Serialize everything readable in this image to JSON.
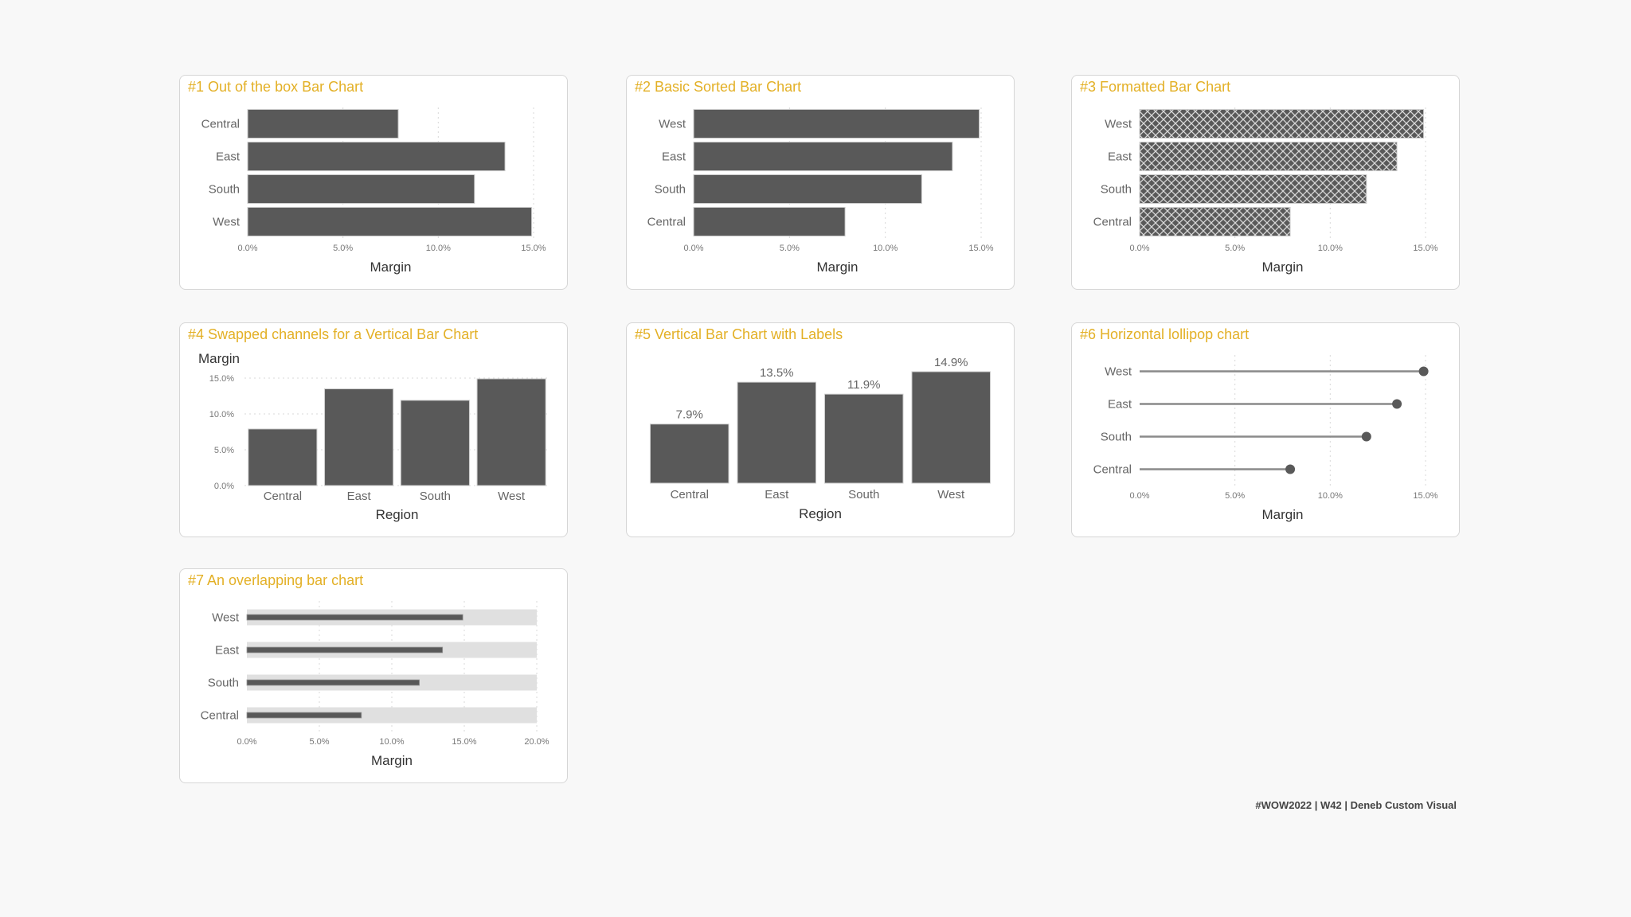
{
  "colors": {
    "title": "#e3b026",
    "bar": "#595959",
    "track": "#e0e0e0",
    "grid": "#d9d9d9",
    "background": "#f8f8f8"
  },
  "footer": "#WOW2022 | W42 | Deneb Custom Visual",
  "chart_data": [
    {
      "title": "#1 Out of the box Bar Chart",
      "type": "bar",
      "orientation": "horizontal",
      "categories": [
        "Central",
        "East",
        "South",
        "West"
      ],
      "values": [
        7.9,
        13.5,
        11.9,
        14.9
      ],
      "xlabel": "Margin",
      "ylabel": "",
      "xlim": [
        0,
        15
      ],
      "ticks": [
        0,
        5,
        10,
        15
      ],
      "tick_labels": [
        "0.0%",
        "5.0%",
        "10.0%",
        "15.0%"
      ],
      "grid": true
    },
    {
      "title": "#2 Basic Sorted Bar Chart",
      "type": "bar",
      "orientation": "horizontal",
      "categories": [
        "West",
        "East",
        "South",
        "Central"
      ],
      "values": [
        14.9,
        13.5,
        11.9,
        7.9
      ],
      "xlabel": "Margin",
      "ylabel": "",
      "xlim": [
        0,
        15
      ],
      "ticks": [
        0,
        5,
        10,
        15
      ],
      "tick_labels": [
        "0.0%",
        "5.0%",
        "10.0%",
        "15.0%"
      ],
      "grid": true
    },
    {
      "title": "#3 Formatted Bar Chart",
      "type": "bar",
      "orientation": "horizontal",
      "fill": "crosshatch pattern",
      "categories": [
        "West",
        "East",
        "South",
        "Central"
      ],
      "values": [
        14.9,
        13.5,
        11.9,
        7.9
      ],
      "xlabel": "Margin",
      "ylabel": "",
      "xlim": [
        0,
        15
      ],
      "ticks": [
        0,
        5,
        10,
        15
      ],
      "tick_labels": [
        "0.0%",
        "5.0%",
        "10.0%",
        "15.0%"
      ],
      "grid": true
    },
    {
      "title": "#4 Swapped channels for a Vertical Bar Chart",
      "type": "bar",
      "orientation": "vertical",
      "categories": [
        "Central",
        "East",
        "South",
        "West"
      ],
      "values": [
        7.9,
        13.5,
        11.9,
        14.9
      ],
      "xlabel": "Region",
      "ylabel": "Margin",
      "ylim": [
        0,
        15
      ],
      "ticks": [
        0,
        5,
        10,
        15
      ],
      "tick_labels": [
        "0.0%",
        "5.0%",
        "10.0%",
        "15.0%"
      ],
      "grid": true
    },
    {
      "title": "#5 Vertical Bar Chart with Labels",
      "type": "bar",
      "orientation": "vertical",
      "categories": [
        "Central",
        "East",
        "South",
        "West"
      ],
      "values": [
        7.9,
        13.5,
        11.9,
        14.9
      ],
      "data_labels": [
        "7.9%",
        "13.5%",
        "11.9%",
        "14.9%"
      ],
      "xlabel": "Region",
      "ylabel": "",
      "ylim": [
        0,
        15
      ],
      "grid": false
    },
    {
      "title": "#6 Horizontal lollipop chart",
      "type": "lollipop",
      "orientation": "horizontal",
      "categories": [
        "West",
        "East",
        "South",
        "Central"
      ],
      "values": [
        14.9,
        13.5,
        11.9,
        7.9
      ],
      "xlabel": "Margin",
      "ylabel": "",
      "xlim": [
        0,
        15
      ],
      "ticks": [
        0,
        5,
        10,
        15
      ],
      "tick_labels": [
        "0.0%",
        "5.0%",
        "10.0%",
        "15.0%"
      ],
      "grid": true
    },
    {
      "title": "#7 An overlapping bar chart",
      "type": "bar",
      "orientation": "horizontal",
      "overlap_background": 20,
      "categories": [
        "West",
        "East",
        "South",
        "Central"
      ],
      "values": [
        14.9,
        13.5,
        11.9,
        7.9
      ],
      "xlabel": "Margin",
      "ylabel": "",
      "xlim": [
        0,
        20
      ],
      "ticks": [
        0,
        5,
        10,
        15,
        20
      ],
      "tick_labels": [
        "0.0%",
        "5.0%",
        "10.0%",
        "15.0%",
        "20.0%"
      ],
      "grid": true
    }
  ]
}
